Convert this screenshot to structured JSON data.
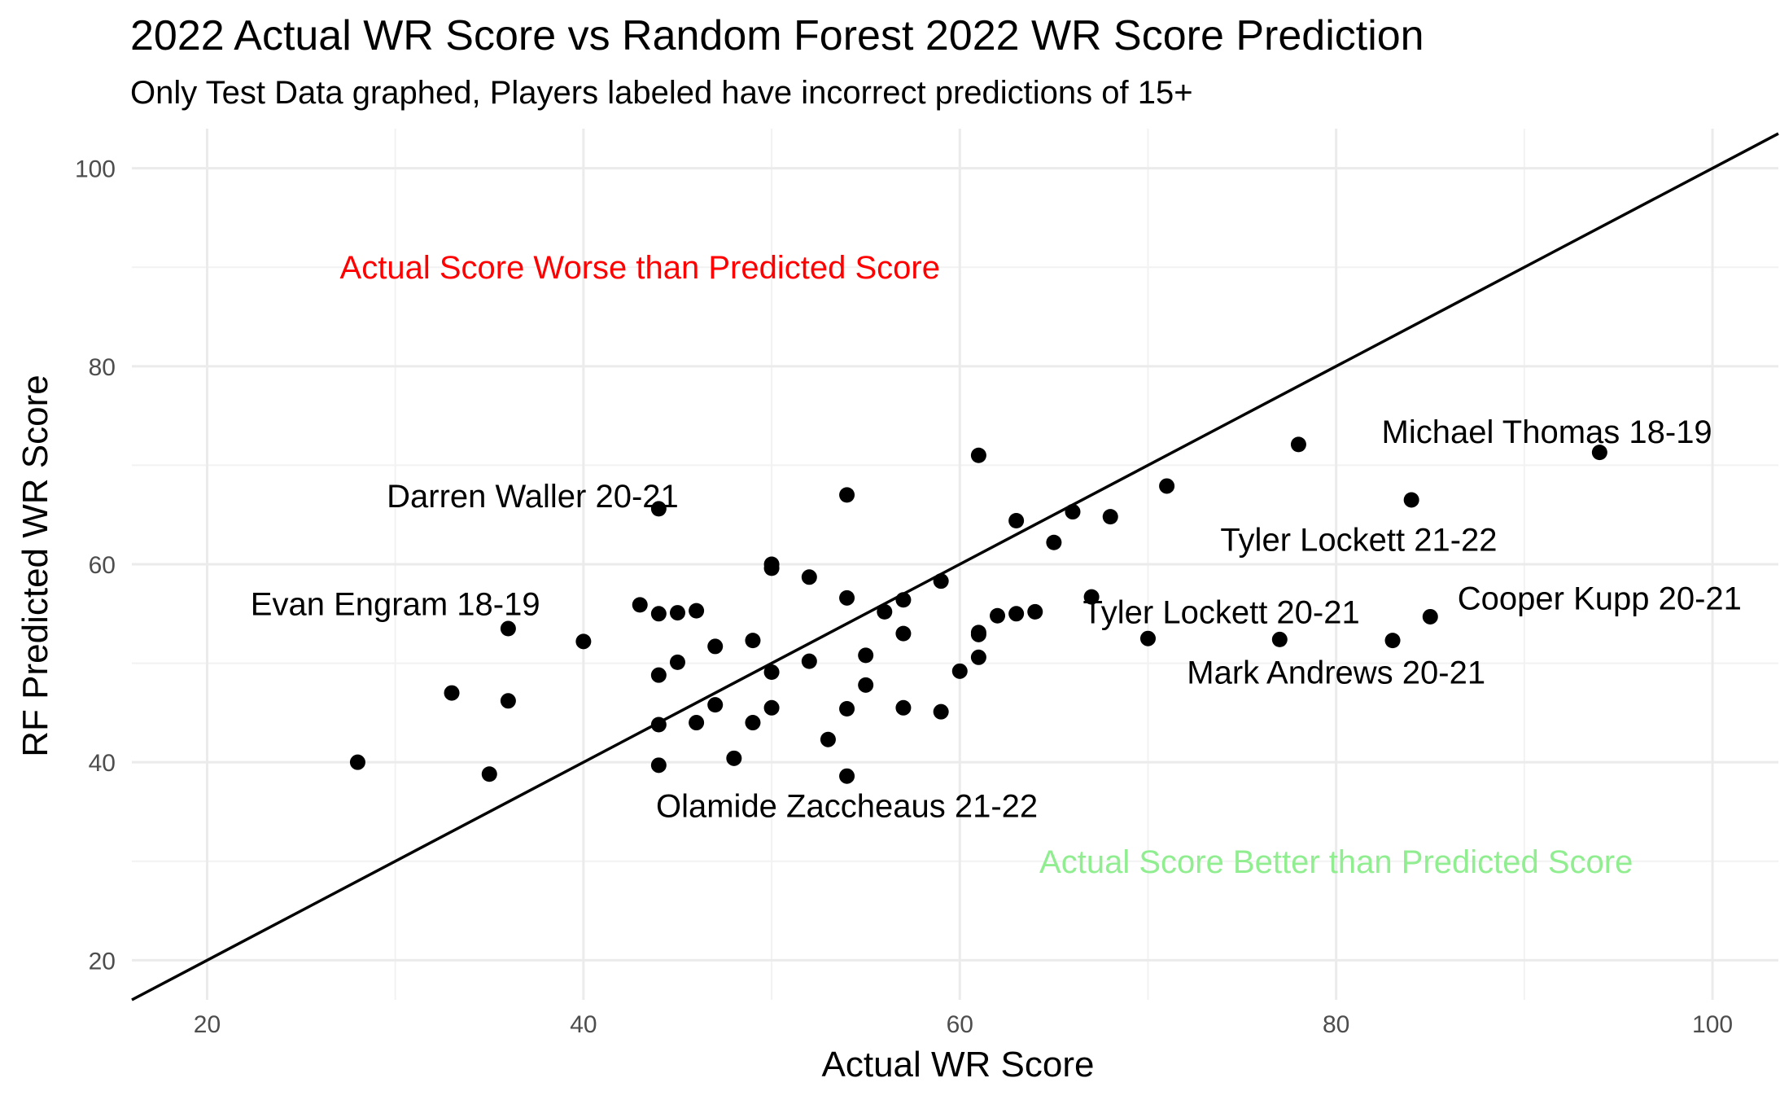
{
  "chart_data": {
    "type": "scatter",
    "title": "2022 Actual WR Score vs Random Forest 2022 WR Score Prediction",
    "subtitle": "Only Test Data graphed, Players labeled have incorrect predictions of 15+",
    "xlabel": "Actual WR Score",
    "ylabel": "RF Predicted WR Score",
    "xlim": [
      16,
      103.5
    ],
    "ylim": [
      16,
      104
    ],
    "xticks": [
      20,
      40,
      60,
      80,
      100
    ],
    "yticks": [
      20,
      40,
      60,
      80,
      100
    ],
    "grid": true,
    "reference_line": {
      "slope": 1,
      "intercept": 0
    },
    "points": [
      {
        "x": 28,
        "y": 40.0
      },
      {
        "x": 33,
        "y": 47.0
      },
      {
        "x": 35,
        "y": 38.8
      },
      {
        "x": 36,
        "y": 53.5
      },
      {
        "x": 36,
        "y": 46.2
      },
      {
        "x": 40,
        "y": 52.2
      },
      {
        "x": 43,
        "y": 55.9
      },
      {
        "x": 44,
        "y": 65.6
      },
      {
        "x": 44,
        "y": 55.0
      },
      {
        "x": 44,
        "y": 48.8
      },
      {
        "x": 44,
        "y": 43.8
      },
      {
        "x": 44,
        "y": 39.7
      },
      {
        "x": 45,
        "y": 55.1
      },
      {
        "x": 45,
        "y": 50.1
      },
      {
        "x": 46,
        "y": 55.3
      },
      {
        "x": 46,
        "y": 44.0
      },
      {
        "x": 47,
        "y": 51.7
      },
      {
        "x": 47,
        "y": 45.8
      },
      {
        "x": 48,
        "y": 40.4
      },
      {
        "x": 49,
        "y": 52.3
      },
      {
        "x": 49,
        "y": 44.0
      },
      {
        "x": 50,
        "y": 60.0
      },
      {
        "x": 50,
        "y": 59.6
      },
      {
        "x": 50,
        "y": 49.1
      },
      {
        "x": 50,
        "y": 45.5
      },
      {
        "x": 52,
        "y": 58.7
      },
      {
        "x": 52,
        "y": 50.2
      },
      {
        "x": 53,
        "y": 42.3
      },
      {
        "x": 54,
        "y": 67.0
      },
      {
        "x": 54,
        "y": 56.6
      },
      {
        "x": 54,
        "y": 45.4
      },
      {
        "x": 54,
        "y": 38.6
      },
      {
        "x": 55,
        "y": 50.8
      },
      {
        "x": 55,
        "y": 47.8
      },
      {
        "x": 56,
        "y": 55.2
      },
      {
        "x": 57,
        "y": 56.4
      },
      {
        "x": 57,
        "y": 53.0
      },
      {
        "x": 57,
        "y": 45.5
      },
      {
        "x": 59,
        "y": 58.3
      },
      {
        "x": 59,
        "y": 45.1
      },
      {
        "x": 60,
        "y": 49.2
      },
      {
        "x": 61,
        "y": 71.0
      },
      {
        "x": 61,
        "y": 53.1
      },
      {
        "x": 61,
        "y": 52.9
      },
      {
        "x": 61,
        "y": 50.6
      },
      {
        "x": 62,
        "y": 54.8
      },
      {
        "x": 63,
        "y": 64.4
      },
      {
        "x": 63,
        "y": 55.0
      },
      {
        "x": 64,
        "y": 55.2
      },
      {
        "x": 65,
        "y": 62.2
      },
      {
        "x": 66,
        "y": 65.3
      },
      {
        "x": 67,
        "y": 56.7
      },
      {
        "x": 68,
        "y": 64.8
      },
      {
        "x": 70,
        "y": 52.5
      },
      {
        "x": 71,
        "y": 67.9
      },
      {
        "x": 77,
        "y": 52.4
      },
      {
        "x": 78,
        "y": 72.1
      },
      {
        "x": 83,
        "y": 52.3
      },
      {
        "x": 84,
        "y": 66.5
      },
      {
        "x": 85,
        "y": 54.7
      },
      {
        "x": 94,
        "y": 71.3
      }
    ],
    "labels": [
      {
        "text": "Michael Thomas 18-19",
        "x": 91.2,
        "y": 73.4
      },
      {
        "text": "Tyler Lockett 21-22",
        "x": 81.2,
        "y": 62.5
      },
      {
        "text": "Darren Waller 20-21",
        "x": 37.3,
        "y": 66.9
      },
      {
        "text": "Evan Engram 18-19",
        "x": 30.0,
        "y": 56.0
      },
      {
        "text": "Tyler Lockett 20-21",
        "x": 73.9,
        "y": 55.2
      },
      {
        "text": "Cooper Kupp 20-21",
        "x": 94.0,
        "y": 56.6
      },
      {
        "text": "Mark Andrews 20-21",
        "x": 80.0,
        "y": 49.1
      },
      {
        "text": "Olamide Zaccheaus 21-22",
        "x": 54.0,
        "y": 35.6
      }
    ],
    "annotations": [
      {
        "text": "Actual Score Worse than Predicted Score",
        "x": 43,
        "y": 90,
        "color": "#ff0000"
      },
      {
        "text": "Actual Score Better than Predicted Score",
        "x": 80,
        "y": 30,
        "color": "#90ee90"
      }
    ]
  }
}
